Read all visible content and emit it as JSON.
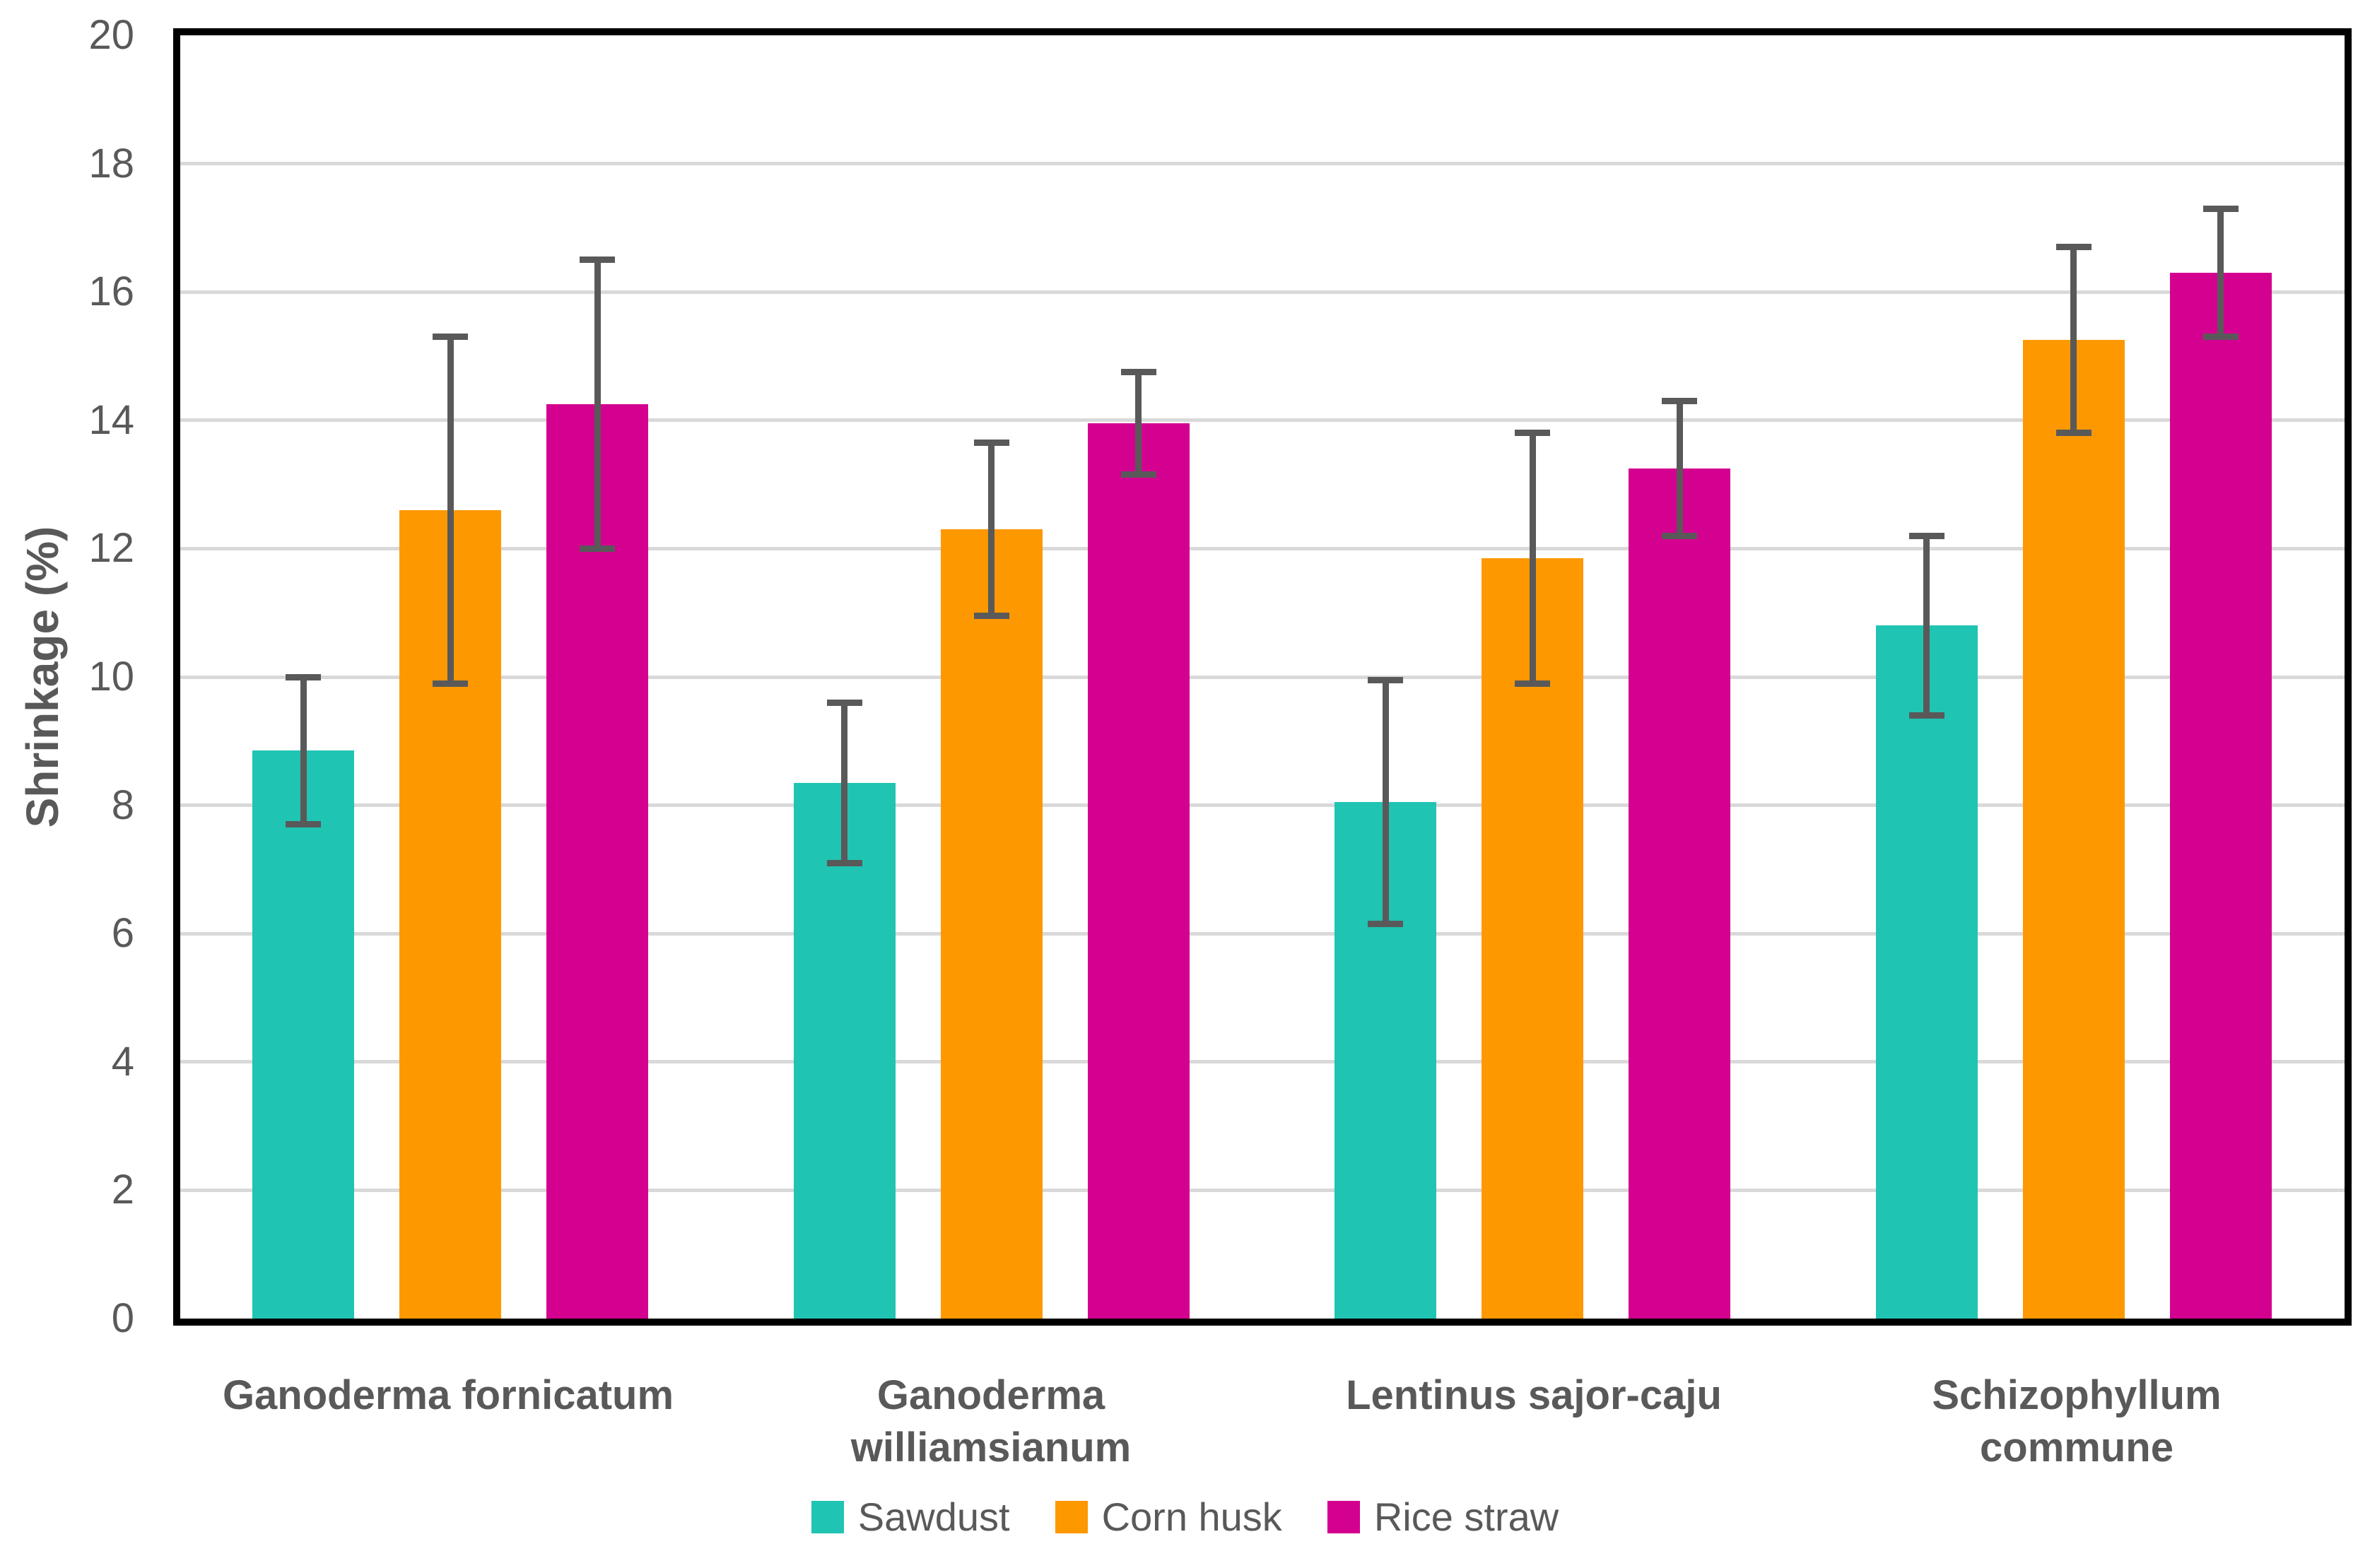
{
  "figure": {
    "background": "#FFFFFF"
  },
  "chart_data": {
    "type": "bar",
    "title": "",
    "xlabel": "",
    "ylabel": "Shrinkage (%)",
    "ylim": [
      0,
      20
    ],
    "ytick_step": 2,
    "yticks": [
      0,
      2,
      4,
      6,
      8,
      10,
      12,
      14,
      16,
      18,
      20
    ],
    "grid": "horizontal",
    "legend_position": "bottom-center",
    "categories": [
      "Ganoderma fornicatum",
      "Ganoderma\nwilliamsianum",
      "Lentinus sajor-caju",
      "Schizophyllum\ncommune"
    ],
    "series": [
      {
        "name": "Sawdust",
        "color": "#20C4B2",
        "values": [
          8.85,
          8.35,
          8.05,
          10.8
        ],
        "errors": [
          1.15,
          1.25,
          1.9,
          1.4
        ]
      },
      {
        "name": "Corn husk",
        "color": "#FD9801",
        "values": [
          12.6,
          12.3,
          11.85,
          15.25
        ],
        "errors": [
          2.7,
          1.35,
          1.95,
          1.45
        ]
      },
      {
        "name": "Rice straw",
        "color": "#D40090",
        "values": [
          14.25,
          13.95,
          13.25,
          16.3
        ],
        "errors": [
          2.25,
          0.8,
          1.05,
          1.0
        ]
      }
    ],
    "colors": {
      "text": "#595959",
      "gridline": "#D9D9D9",
      "axis_border": "#000000",
      "error_bar": "#595959"
    }
  }
}
